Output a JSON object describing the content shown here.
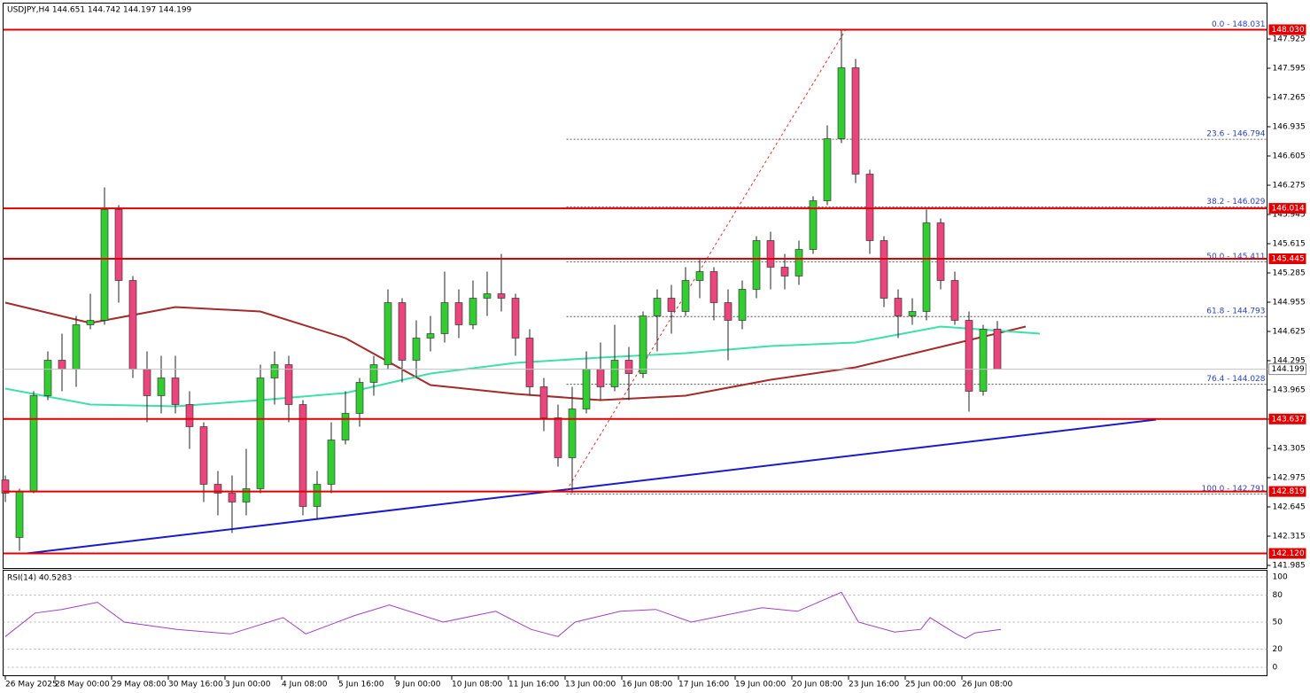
{
  "chart_data": [
    {
      "type": "candlestick",
      "title": "USDJPY,H4 144.651 144.742 144.197 144.199",
      "up_color": "#33cc33",
      "down_color": "#e8467c",
      "candles": [
        [
          142.95,
          143.0,
          142.7,
          142.8
        ],
        [
          142.3,
          142.85,
          142.15,
          142.82
        ],
        [
          142.82,
          143.95,
          142.8,
          143.9
        ],
        [
          143.9,
          144.4,
          143.85,
          144.3
        ],
        [
          144.3,
          144.6,
          143.95,
          144.2
        ],
        [
          144.2,
          144.8,
          144.0,
          144.7
        ],
        [
          144.7,
          145.05,
          144.65,
          144.75
        ],
        [
          144.75,
          146.25,
          144.7,
          146.0
        ],
        [
          146.0,
          146.05,
          144.95,
          145.2
        ],
        [
          145.2,
          145.25,
          144.1,
          144.2
        ],
        [
          144.2,
          144.4,
          143.6,
          143.9
        ],
        [
          143.9,
          144.35,
          143.7,
          144.1
        ],
        [
          144.1,
          144.35,
          143.7,
          143.8
        ],
        [
          143.8,
          143.95,
          143.3,
          143.55
        ],
        [
          143.55,
          143.6,
          142.7,
          142.9
        ],
        [
          142.9,
          143.05,
          142.55,
          142.8
        ],
        [
          142.8,
          143.0,
          142.35,
          142.7
        ],
        [
          142.7,
          143.3,
          142.55,
          142.85
        ],
        [
          142.85,
          144.25,
          142.8,
          144.1
        ],
        [
          144.1,
          144.4,
          143.8,
          144.25
        ],
        [
          144.25,
          144.35,
          143.6,
          143.8
        ],
        [
          143.8,
          143.85,
          142.55,
          142.65
        ],
        [
          142.65,
          143.05,
          142.5,
          142.9
        ],
        [
          142.9,
          143.6,
          142.8,
          143.4
        ],
        [
          143.4,
          143.95,
          143.35,
          143.7
        ],
        [
          143.7,
          144.1,
          143.55,
          144.05
        ],
        [
          144.05,
          144.35,
          143.9,
          144.25
        ],
        [
          144.25,
          145.1,
          144.2,
          144.95
        ],
        [
          144.95,
          145.0,
          144.05,
          144.3
        ],
        [
          144.3,
          144.75,
          144.1,
          144.55
        ],
        [
          144.55,
          144.8,
          144.4,
          144.6
        ],
        [
          144.6,
          145.3,
          144.5,
          144.95
        ],
        [
          144.95,
          145.1,
          144.55,
          144.7
        ],
        [
          144.7,
          145.2,
          144.65,
          145.0
        ],
        [
          145.0,
          145.3,
          144.8,
          145.05
        ],
        [
          145.05,
          145.5,
          144.85,
          145.0
        ],
        [
          145.0,
          145.05,
          144.35,
          144.55
        ],
        [
          144.55,
          144.65,
          143.9,
          144.0
        ],
        [
          144.0,
          144.1,
          143.5,
          143.65
        ],
        [
          143.65,
          143.8,
          143.1,
          143.2
        ],
        [
          143.2,
          144.0,
          142.8,
          143.75
        ],
        [
          143.75,
          144.4,
          143.7,
          144.2
        ],
        [
          144.2,
          144.5,
          143.85,
          144.0
        ],
        [
          144.0,
          144.7,
          143.95,
          144.3
        ],
        [
          144.3,
          144.45,
          143.85,
          144.15
        ],
        [
          144.15,
          144.85,
          144.1,
          144.8
        ],
        [
          144.8,
          145.1,
          144.4,
          145.0
        ],
        [
          145.0,
          145.15,
          144.6,
          144.85
        ],
        [
          144.85,
          145.35,
          144.8,
          145.2
        ],
        [
          145.2,
          145.45,
          145.0,
          145.3
        ],
        [
          145.3,
          145.35,
          144.75,
          144.95
        ],
        [
          144.95,
          145.1,
          144.3,
          144.75
        ],
        [
          144.75,
          145.2,
          144.65,
          145.1
        ],
        [
          145.1,
          145.7,
          145.0,
          145.65
        ],
        [
          145.65,
          145.75,
          145.1,
          145.35
        ],
        [
          145.35,
          145.5,
          145.1,
          145.25
        ],
        [
          145.25,
          145.65,
          145.15,
          145.55
        ],
        [
          145.55,
          146.15,
          145.5,
          146.1
        ],
        [
          146.1,
          146.95,
          146.05,
          146.8
        ],
        [
          146.8,
          148.03,
          146.75,
          147.6
        ],
        [
          147.6,
          147.7,
          146.3,
          146.4
        ],
        [
          146.4,
          146.45,
          145.5,
          145.65
        ],
        [
          145.65,
          145.7,
          144.9,
          145.0
        ],
        [
          145.0,
          145.1,
          144.55,
          144.8
        ],
        [
          144.8,
          145.0,
          144.7,
          144.85
        ],
        [
          144.85,
          146.0,
          144.75,
          145.85
        ],
        [
          145.85,
          145.9,
          145.1,
          145.2
        ],
        [
          145.2,
          145.3,
          144.7,
          144.75
        ],
        [
          144.75,
          144.85,
          143.72,
          143.95
        ],
        [
          143.95,
          144.7,
          143.9,
          144.65
        ],
        [
          144.651,
          144.742,
          144.197,
          144.199
        ]
      ],
      "ylim": [
        141.95,
        148.33
      ],
      "yticks": [
        147.925,
        147.595,
        147.265,
        146.935,
        146.605,
        146.275,
        145.945,
        145.615,
        145.285,
        144.955,
        144.625,
        144.295,
        143.965,
        143.635,
        143.305,
        142.975,
        142.645,
        142.315,
        141.985
      ],
      "xticks": [
        {
          "value": 0,
          "label": "26 May 2025"
        },
        {
          "value": 3.5,
          "label": "28 May 00:00"
        },
        {
          "value": 7.5,
          "label": "29 May 08:00"
        },
        {
          "value": 11.5,
          "label": "30 May 16:00"
        },
        {
          "value": 15.5,
          "label": "3 Jun 00:00"
        },
        {
          "value": 19.5,
          "label": "4 Jun 08:00"
        },
        {
          "value": 23.5,
          "label": "5 Jun 16:00"
        },
        {
          "value": 27.5,
          "label": "9 Jun 00:00"
        },
        {
          "value": 31.5,
          "label": "10 Jun 08:00"
        },
        {
          "value": 35.5,
          "label": "11 Jun 16:00"
        },
        {
          "value": 39.5,
          "label": "13 Jun 00:00"
        },
        {
          "value": 43.5,
          "label": "16 Jun 08:00"
        },
        {
          "value": 47.5,
          "label": "17 Jun 16:00"
        },
        {
          "value": 51.5,
          "label": "19 Jun 00:00"
        },
        {
          "value": 55.5,
          "label": "20 Jun 08:00"
        },
        {
          "value": 59.5,
          "label": "23 Jun 16:00"
        },
        {
          "value": 63.5,
          "label": "25 Jun 00:00"
        },
        {
          "value": 67.5,
          "label": "26 Jun 08:00"
        }
      ],
      "levels": [
        {
          "value": 148.03,
          "label": "148.030"
        },
        {
          "value": 146.014,
          "label": "146.014"
        },
        {
          "value": 145.445,
          "label": "145.445"
        },
        {
          "value": 143.637,
          "label": "143.637"
        },
        {
          "value": 142.819,
          "label": "142.819"
        },
        {
          "value": 142.12,
          "label": "142.120"
        }
      ],
      "level_color": "#e00000",
      "current_price": 144.199,
      "fib_color": "#2a3fb8",
      "fib_levels": [
        {
          "value": 148.031,
          "label": "0.0 - 148.031"
        },
        {
          "value": 146.794,
          "label": "23.6 - 146.794"
        },
        {
          "value": 146.029,
          "label": "38.2 - 146.029"
        },
        {
          "value": 145.411,
          "label": "50.0 - 145.411"
        },
        {
          "value": 144.793,
          "label": "61.8 - 144.793"
        },
        {
          "value": 144.028,
          "label": "76.4 - 144.028"
        },
        {
          "value": 142.791,
          "label": "100.0 - 142.791"
        }
      ],
      "lines": [
        {
          "color": "#a52a2a",
          "x": [
            0,
            6,
            12,
            18,
            24,
            30,
            36,
            42,
            48,
            54,
            60,
            66,
            72
          ],
          "values": [
            144.95,
            144.72,
            144.9,
            144.85,
            144.55,
            144.02,
            143.92,
            143.85,
            143.9,
            144.08,
            144.22,
            144.45,
            144.68
          ]
        },
        {
          "color": "#3ee0a8",
          "x": [
            0,
            6,
            12,
            18,
            24,
            30,
            36,
            42,
            48,
            54,
            60,
            66,
            73
          ],
          "values": [
            143.98,
            143.8,
            143.78,
            143.85,
            143.93,
            144.15,
            144.27,
            144.33,
            144.38,
            144.46,
            144.5,
            144.68,
            144.6
          ]
        }
      ],
      "trendlines": [
        {
          "color": "#1a1acc",
          "dashed": false,
          "x": [
            1.5,
            81.2
          ],
          "values": [
            142.12,
            143.63
          ]
        },
        {
          "color": "#e03030",
          "dashed": true,
          "x": [
            39.6,
            59.3
          ],
          "values": [
            142.83,
            148.03
          ]
        }
      ]
    },
    {
      "type": "line",
      "title": "RSI(14) 40.5283",
      "color": "#a040c0",
      "x": [
        0,
        2.1,
        4,
        6.5,
        8.4,
        12.1,
        15.9,
        19.6,
        21.2,
        24.6,
        27.1,
        30.9,
        34.6,
        37.1,
        39,
        40.2,
        43.4,
        45.9,
        48.4,
        53.4,
        55.9,
        59,
        60.2,
        62.75,
        64.6,
        65.25,
        67.1,
        67.75,
        68.4,
        70.25
      ],
      "values": [
        34,
        60,
        64,
        72,
        50,
        42,
        37,
        55,
        37,
        57,
        69,
        50,
        62,
        42,
        34,
        50,
        62,
        64,
        50,
        66,
        62,
        83,
        50,
        39,
        42,
        55,
        37,
        32,
        38,
        42
      ],
      "ylim": [
        0,
        100
      ],
      "yticks": [
        0,
        20,
        50,
        80,
        100
      ]
    }
  ]
}
